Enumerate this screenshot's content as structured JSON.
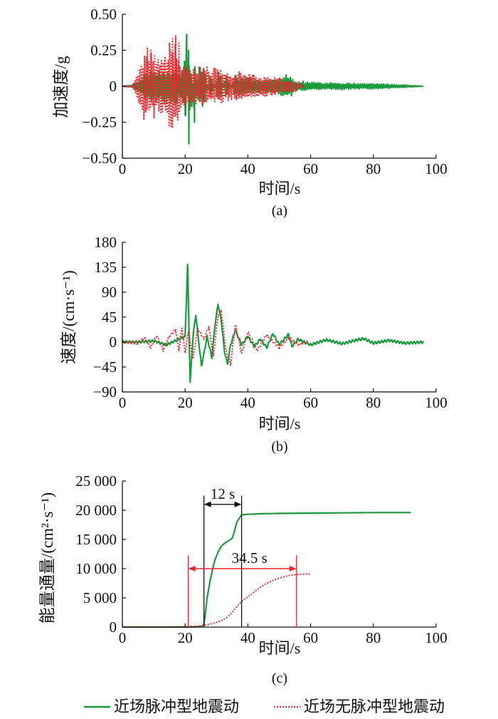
{
  "colors": {
    "pulse": "#1a9a3c",
    "nonpulse": "#e8262b",
    "axis": "#111111"
  },
  "legend": {
    "pulse": "近场脉冲型地震动",
    "nonpulse": "近场无脉冲型地震动"
  },
  "chart_data": [
    {
      "type": "line",
      "caption": "(a)",
      "xlabel": "时间/s",
      "ylabel": "加速度/g",
      "xlim": [
        0,
        100
      ],
      "ylim": [
        -0.5,
        0.5
      ],
      "xticks": [
        "0",
        "20",
        "40",
        "60",
        "80",
        "100"
      ],
      "yticks": [
        "−0.50",
        "−0.25",
        "0",
        "0.25",
        "0.50"
      ],
      "series": [
        {
          "name": "近场脉冲型地震动",
          "style": "solid",
          "x": [
            0,
            3,
            5,
            7,
            9,
            11,
            13,
            15,
            17,
            19,
            20.5,
            21.2,
            22,
            23,
            24,
            26,
            28,
            31,
            33,
            36,
            40,
            45,
            50,
            52.5,
            55,
            60,
            65,
            70,
            75,
            80,
            85,
            90,
            96
          ],
          "y": [
            0,
            0.01,
            0.04,
            0.1,
            0.12,
            0.11,
            0.12,
            0.13,
            0.15,
            0.1,
            0.36,
            -0.4,
            0.22,
            -0.25,
            0.12,
            0.18,
            -0.12,
            0.14,
            -0.1,
            0.08,
            0.06,
            0.05,
            0.06,
            0.1,
            0.04,
            0.03,
            0.025,
            0.025,
            0.02,
            0.02,
            0.015,
            0.01,
            0
          ]
        },
        {
          "name": "近场无脉冲型地震动",
          "style": "dotted",
          "x": [
            0,
            3,
            5,
            6,
            8,
            9,
            11,
            13,
            15,
            16,
            17,
            18,
            19,
            20,
            22,
            24,
            26,
            28,
            30,
            32,
            35,
            38,
            40,
            45,
            50,
            55,
            58
          ],
          "y": [
            0,
            0.01,
            0.1,
            0.22,
            0.27,
            0.25,
            0.2,
            0.22,
            0.3,
            0.33,
            0.35,
            0.3,
            0.2,
            0.18,
            0.15,
            0.12,
            0.17,
            0.12,
            0.14,
            0.13,
            0.1,
            0.12,
            0.1,
            0.08,
            0.06,
            0.04,
            0.01
          ]
        }
      ]
    },
    {
      "type": "line",
      "caption": "(b)",
      "xlabel": "时间/s",
      "ylabel": "速度/(cm·s⁻¹)",
      "xlim": [
        0,
        100
      ],
      "ylim": [
        -90,
        180
      ],
      "xticks": [
        "0",
        "20",
        "40",
        "60",
        "80",
        "100"
      ],
      "yticks": [
        "−90",
        "−45",
        "0",
        "45",
        "90",
        "135",
        "180"
      ],
      "series": [
        {
          "name": "近场脉冲型地震动",
          "style": "solid",
          "x": [
            0,
            5,
            10,
            14,
            18,
            20,
            20.8,
            21.6,
            22.6,
            23.4,
            24.2,
            25.2,
            26,
            27,
            28.5,
            29.5,
            30.5,
            31.5,
            32.5,
            33.5,
            34.5,
            36,
            38,
            40,
            42,
            44,
            46,
            48,
            50,
            52,
            53,
            54,
            56,
            60,
            65,
            70,
            75,
            77,
            80,
            85,
            90,
            96
          ],
          "y": [
            0,
            0,
            2,
            -5,
            5,
            10,
            140,
            -72,
            15,
            48,
            8,
            -43,
            -20,
            10,
            -28,
            30,
            68,
            40,
            -15,
            -40,
            -5,
            22,
            -5,
            10,
            -8,
            5,
            -10,
            15,
            -5,
            8,
            14,
            -8,
            5,
            -5,
            4,
            -3,
            4,
            6,
            -2,
            3,
            -2,
            0
          ]
        },
        {
          "name": "近场无脉冲型地震动",
          "style": "dotted",
          "x": [
            0,
            5,
            7,
            9,
            11,
            13,
            15,
            17,
            18,
            19,
            20,
            21,
            22.5,
            24,
            26,
            27.5,
            29,
            30.5,
            31.5,
            33,
            34.5,
            36,
            38,
            40,
            43,
            46,
            50,
            53,
            56,
            59
          ],
          "y": [
            0,
            -2,
            8,
            -10,
            12,
            -15,
            10,
            22,
            -15,
            25,
            -20,
            18,
            -30,
            25,
            5,
            28,
            -25,
            48,
            58,
            -15,
            -40,
            30,
            -20,
            18,
            -15,
            12,
            -10,
            8,
            -5,
            0
          ]
        }
      ]
    },
    {
      "type": "line",
      "caption": "(c)",
      "xlabel": "时间/s",
      "ylabel": "能量通量/(cm²·s⁻¹)",
      "xlim": [
        0,
        100
      ],
      "ylim": [
        0,
        25000
      ],
      "xticks": [
        "0",
        "20",
        "40",
        "60",
        "80",
        "100"
      ],
      "yticks": [
        "0",
        "5 000",
        "10 000",
        "15 000",
        "20 000",
        "25 000"
      ],
      "series": [
        {
          "name": "近场脉冲型地震动",
          "style": "solid",
          "x": [
            0,
            20,
            24,
            25.5,
            26,
            26.5,
            27,
            27.5,
            28,
            28.8,
            29.5,
            30.5,
            31.5,
            32.5,
            33,
            34,
            35,
            35.5,
            36.5,
            37.5,
            38,
            40,
            45,
            50,
            60,
            70,
            80,
            92
          ],
          "y": [
            0,
            0,
            50,
            150,
            500,
            2500,
            5000,
            6500,
            8000,
            10000,
            11500,
            12800,
            13800,
            14300,
            14500,
            14800,
            15200,
            16000,
            18000,
            18800,
            19200,
            19300,
            19400,
            19450,
            19500,
            19550,
            19600,
            19600
          ]
        },
        {
          "name": "近场无脉冲型地震动",
          "style": "dotted",
          "x": [
            0,
            10,
            20,
            24,
            26,
            28,
            30,
            32,
            33,
            34,
            35,
            36,
            37,
            38,
            40,
            42,
            44,
            46,
            48,
            50,
            52,
            54,
            56,
            58,
            60
          ],
          "y": [
            0,
            20,
            60,
            150,
            300,
            500,
            800,
            1200,
            1500,
            2000,
            2500,
            3200,
            3800,
            4400,
            5200,
            6000,
            6800,
            7500,
            8000,
            8400,
            8700,
            8900,
            9000,
            9100,
            9100
          ]
        }
      ],
      "annotations": [
        {
          "label": "12 s",
          "x_start": 26,
          "x_end": 38,
          "y": 21000,
          "color": "#111111"
        },
        {
          "label": "34.5 s",
          "x_start": 21,
          "x_end": 55.5,
          "y": 10000,
          "color": "#e8262b"
        }
      ]
    }
  ]
}
